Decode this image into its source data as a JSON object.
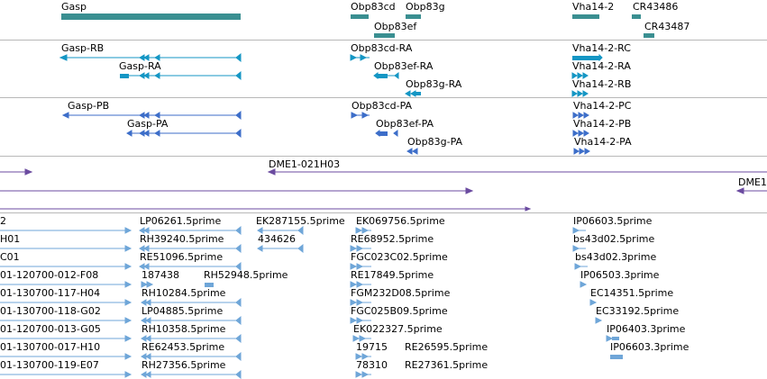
{
  "tracks": {
    "genes": {
      "colors": {
        "gene": "#3a8f91"
      },
      "labels": [
        "Gasp",
        "Obp83cd",
        "Obp83g",
        "Obp83ef",
        "Vha14-2",
        "CR43486",
        "CR43487"
      ]
    },
    "transcripts": {
      "colors": {
        "transcript": "#1496c4"
      },
      "labels": [
        "Gasp-RB",
        "Gasp-RA",
        "Obp83cd-RA",
        "Obp83ef-RA",
        "Obp83g-RA",
        "Vha14-2-RC",
        "Vha14-2-RA",
        "Vha14-2-RB"
      ]
    },
    "proteins": {
      "colors": {
        "protein": "#3d6ec9"
      },
      "labels": [
        "Gasp-PB",
        "Gasp-PA",
        "Obp83cd-PA",
        "Obp83ef-PA",
        "Obp83g-PA",
        "Vha14-2-PC",
        "Vha14-2-PB",
        "Vha14-2-PA"
      ]
    },
    "clones": {
      "colors": {
        "clone": "#6b4ba0"
      },
      "labels": [
        "DME1-021H03",
        "DME1"
      ]
    },
    "ests": {
      "colors": {
        "est": "#6fa6d8"
      },
      "labels": [
        "2",
        "H01",
        "C01",
        "01-120700-012-F08",
        "01-130700-117-H04",
        "01-130700-118-G02",
        "01-120700-013-G05",
        "01-130700-017-H10",
        "01-130700-119-E07",
        "LP06261.5prime",
        "RH39240.5prime",
        "RE51096.5prime",
        "187438",
        "RH52948.5prime",
        "RH10284.5prime",
        "LP04885.5prime",
        "RH10358.5prime",
        "RE62453.5prime",
        "RH27356.5prime",
        "EK287155.5prime",
        "434626",
        "EK069756.5prime",
        "RE68952.5prime",
        "FGC023C02.5prime",
        "RE17849.5prime",
        "FGM232D08.5prime",
        "FGC025B09.5prime",
        "EK022327.5prime",
        "19715",
        "RE26595.5prime",
        "78310",
        "RE27361.5prime",
        "IP06603.5prime",
        "bs43d02.5prime",
        "bs43d02.3prime",
        "IP06503.3prime",
        "EC14351.5prime",
        "EC33192.5prime",
        "IP06403.3prime",
        "IP06603.3prime"
      ]
    }
  }
}
